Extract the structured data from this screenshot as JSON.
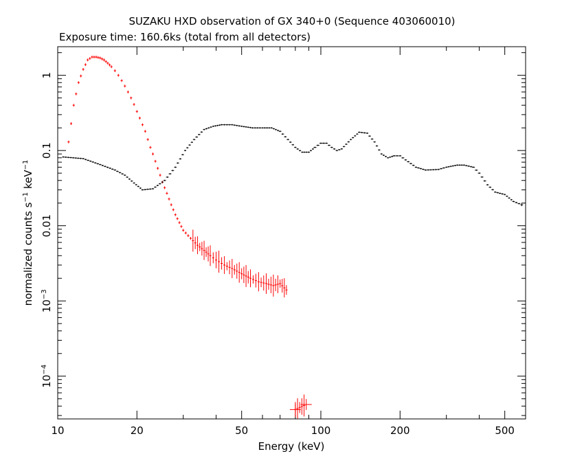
{
  "title": "SUZAKU HXD observation of GX 340+0 (Sequence 403060010)",
  "subtitle": "Exposure time: 160.6ks (total from all detectors)",
  "chart_data": {
    "type": "scatter",
    "xlabel": "Energy (keV)",
    "ylabel_prefix": "normalized counts s",
    "ylabel_mid": " keV",
    "ylabel_exp": "−1",
    "xscale": "log",
    "yscale": "log",
    "xlim": [
      10,
      600
    ],
    "ylim": [
      2.7e-05,
      2.4
    ],
    "grid": false,
    "x_ticks": [
      {
        "value": 10,
        "label": "10"
      },
      {
        "value": 20,
        "label": "20"
      },
      {
        "value": 50,
        "label": "50"
      },
      {
        "value": 100,
        "label": "100"
      },
      {
        "value": 200,
        "label": "200"
      },
      {
        "value": 500,
        "label": "500"
      }
    ],
    "y_ticks": [
      {
        "value": 1,
        "label": "1"
      },
      {
        "value": 0.1,
        "label": "0.1"
      },
      {
        "value": 0.01,
        "label": "0.01"
      },
      {
        "value": 0.001,
        "label_base": "10",
        "label_exp": "−3"
      },
      {
        "value": 0.0001,
        "label_base": "10",
        "label_exp": "−4"
      }
    ],
    "series": [
      {
        "color": "#ff0000",
        "points": [
          [
            11,
            0.13
          ],
          [
            11.5,
            0.4
          ],
          [
            12,
            0.8
          ],
          [
            12.5,
            1.2
          ],
          [
            13,
            1.6
          ],
          [
            13.5,
            1.75
          ],
          [
            14,
            1.75
          ],
          [
            14.5,
            1.7
          ],
          [
            15,
            1.6
          ],
          [
            15.5,
            1.45
          ],
          [
            16,
            1.3
          ],
          [
            16.5,
            1.15
          ],
          [
            17,
            1.0
          ],
          [
            17.5,
            0.85
          ],
          [
            18,
            0.72
          ],
          [
            18.5,
            0.6
          ],
          [
            19,
            0.5
          ],
          [
            19.5,
            0.41
          ],
          [
            20,
            0.33
          ],
          [
            20.5,
            0.27
          ],
          [
            21,
            0.22
          ],
          [
            21.5,
            0.18
          ],
          [
            22,
            0.14
          ],
          [
            22.5,
            0.11
          ],
          [
            23,
            0.09
          ],
          [
            23.5,
            0.072
          ],
          [
            24,
            0.058
          ],
          [
            24.5,
            0.047
          ],
          [
            25,
            0.038
          ],
          [
            26,
            0.027
          ],
          [
            27,
            0.019
          ],
          [
            28,
            0.014
          ],
          [
            29,
            0.011
          ],
          [
            30,
            0.0087
          ],
          [
            32,
            0.0068
          ],
          [
            34,
            0.0055
          ],
          [
            36,
            0.0047
          ],
          [
            38,
            0.004
          ],
          [
            40,
            0.0035
          ],
          [
            43,
            0.003
          ],
          [
            46,
            0.0027
          ],
          [
            50,
            0.0023
          ],
          [
            54,
            0.002
          ],
          [
            58,
            0.0018
          ],
          [
            62,
            0.0017
          ],
          [
            66,
            0.0016
          ],
          [
            70,
            0.0017
          ],
          [
            74,
            0.0014
          ],
          [
            80,
            3.6e-05
          ],
          [
            88,
            4.2e-05
          ]
        ]
      },
      {
        "color": "#000000",
        "points": [
          [
            10.5,
            0.082
          ],
          [
            12.5,
            0.078
          ],
          [
            14.5,
            0.065
          ],
          [
            16.5,
            0.055
          ],
          [
            18,
            0.047
          ],
          [
            19.5,
            0.037
          ],
          [
            21,
            0.03
          ],
          [
            23,
            0.031
          ],
          [
            25.5,
            0.04
          ],
          [
            28,
            0.06
          ],
          [
            30.5,
            0.1
          ],
          [
            33,
            0.14
          ],
          [
            36,
            0.19
          ],
          [
            39,
            0.21
          ],
          [
            42,
            0.22
          ],
          [
            46,
            0.22
          ],
          [
            50,
            0.21
          ],
          [
            55,
            0.2
          ],
          [
            60,
            0.2
          ],
          [
            65,
            0.2
          ],
          [
            70,
            0.18
          ],
          [
            75,
            0.14
          ],
          [
            80,
            0.11
          ],
          [
            85,
            0.095
          ],
          [
            90,
            0.095
          ],
          [
            95,
            0.11
          ],
          [
            100,
            0.125
          ],
          [
            105,
            0.125
          ],
          [
            110,
            0.11
          ],
          [
            115,
            0.1
          ],
          [
            120,
            0.105
          ],
          [
            130,
            0.14
          ],
          [
            140,
            0.175
          ],
          [
            150,
            0.17
          ],
          [
            160,
            0.13
          ],
          [
            170,
            0.09
          ],
          [
            180,
            0.08
          ],
          [
            190,
            0.085
          ],
          [
            200,
            0.085
          ],
          [
            210,
            0.075
          ],
          [
            230,
            0.06
          ],
          [
            250,
            0.055
          ],
          [
            280,
            0.056
          ],
          [
            300,
            0.06
          ],
          [
            330,
            0.064
          ],
          [
            350,
            0.064
          ],
          [
            380,
            0.06
          ],
          [
            400,
            0.05
          ],
          [
            430,
            0.035
          ],
          [
            460,
            0.028
          ],
          [
            500,
            0.026
          ],
          [
            540,
            0.021
          ],
          [
            580,
            0.019
          ]
        ]
      }
    ]
  }
}
